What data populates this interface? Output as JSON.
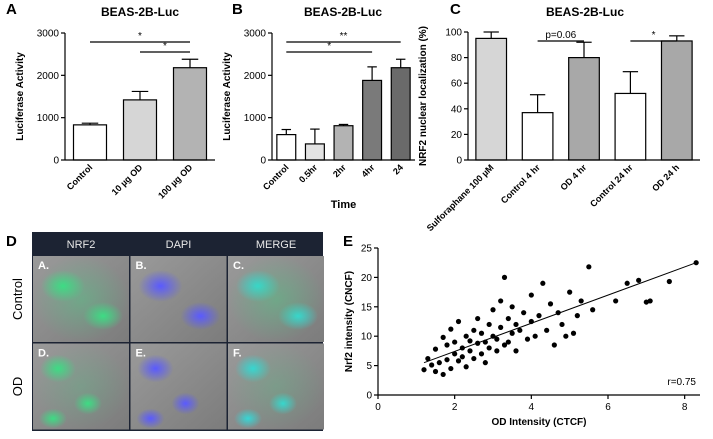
{
  "chart_data": [
    {
      "type": "bar",
      "panel": "A",
      "title": "BEAS-2B-Luc",
      "y_label": "Luciferase Activity",
      "categories": [
        "Control",
        "10 µg OD",
        "100 µg OD"
      ],
      "values": [
        830,
        1420,
        2180
      ],
      "errors": [
        40,
        200,
        200
      ],
      "colors": [
        "#ffffff",
        "#d6d6d6",
        "#b3b3b3"
      ],
      "ylim": [
        0,
        3000
      ],
      "yticks": [
        0,
        1000,
        2000,
        3000
      ],
      "annotations": [
        {
          "label": "*",
          "between": [
            "Control",
            "100 µg OD"
          ]
        },
        {
          "label": "*",
          "between": [
            "10 µg OD",
            "100 µg OD"
          ]
        }
      ]
    },
    {
      "type": "bar",
      "panel": "B",
      "title": "BEAS-2B-Luc",
      "y_label": "Luciferase Activity",
      "x_label": "Time",
      "categories": [
        "Control",
        "0.5hr",
        "2hr",
        "4hr",
        "24"
      ],
      "values": [
        600,
        380,
        810,
        1880,
        2180
      ],
      "errors": [
        120,
        350,
        30,
        320,
        200
      ],
      "colors": [
        "#ffffff",
        "#e3e3e3",
        "#b3b3b3",
        "#7a7a7a",
        "#6a6a6a"
      ],
      "ylim": [
        0,
        3000
      ],
      "yticks": [
        0,
        1000,
        2000,
        3000
      ],
      "annotations": [
        {
          "label": "**",
          "between": [
            "Control",
            "24"
          ]
        },
        {
          "label": "*",
          "between": [
            "Control",
            "4hr"
          ]
        }
      ]
    },
    {
      "type": "bar",
      "panel": "C",
      "title": "BEAS-2B-Luc",
      "y_label": "NRF2 nuclear localization (%)",
      "categories": [
        "Sulforaphane 100 µM",
        "Control 4 hr",
        "OD 4 hr",
        "Control 24 hr",
        "OD 24 h"
      ],
      "values": [
        95,
        37,
        80,
        52,
        93
      ],
      "errors": [
        5,
        14,
        12,
        17,
        4
      ],
      "colors": [
        "#d6d6d6",
        "#ffffff",
        "#a8a8a8",
        "#ffffff",
        "#a8a8a8"
      ],
      "ylim": [
        0,
        100
      ],
      "yticks": [
        0,
        20,
        40,
        60,
        80,
        100
      ],
      "annotations": [
        {
          "label": "p=0.06",
          "between": [
            "Control 4 hr",
            "OD 4 hr"
          ]
        },
        {
          "label": "*",
          "between": [
            "Control 24 hr",
            "OD 24 h"
          ]
        }
      ]
    },
    {
      "type": "scatter",
      "panel": "E",
      "x_label": "OD Intensity  (CTCF)",
      "y_label": "Nrf2 intensity (CNCF)",
      "x": [
        1.2,
        1.3,
        1.4,
        1.5,
        1.5,
        1.6,
        1.7,
        1.7,
        1.8,
        1.8,
        1.9,
        1.9,
        2.0,
        2.0,
        2.1,
        2.1,
        2.2,
        2.2,
        2.3,
        2.3,
        2.4,
        2.4,
        2.5,
        2.5,
        2.6,
        2.6,
        2.7,
        2.7,
        2.8,
        2.8,
        2.9,
        2.9,
        3.0,
        3.0,
        3.1,
        3.1,
        3.2,
        3.2,
        3.3,
        3.3,
        3.4,
        3.4,
        3.5,
        3.5,
        3.6,
        3.6,
        3.7,
        3.8,
        3.9,
        4.0,
        4.0,
        4.1,
        4.2,
        4.3,
        4.4,
        4.5,
        4.6,
        4.7,
        4.8,
        4.9,
        5.0,
        5.1,
        5.2,
        5.3,
        5.5,
        5.6,
        6.2,
        6.5,
        6.8,
        7.0,
        7.1,
        7.6,
        8.3
      ],
      "values": [
        4.3,
        6.2,
        5.1,
        4.0,
        7.8,
        5.5,
        9.8,
        3.5,
        6.0,
        8.5,
        4.5,
        11.2,
        7.0,
        9.0,
        5.8,
        12.5,
        8.0,
        6.5,
        10.0,
        4.8,
        7.5,
        9.2,
        11.0,
        6.2,
        8.8,
        13.0,
        7.0,
        10.5,
        9.0,
        5.5,
        12.0,
        8.0,
        10.0,
        14.5,
        7.5,
        9.5,
        16.0,
        11.5,
        8.5,
        20.0,
        13.0,
        9.0,
        10.5,
        15.0,
        12.0,
        7.5,
        11.0,
        14.0,
        9.5,
        17.0,
        12.5,
        10.0,
        13.5,
        19.0,
        11.0,
        15.5,
        8.5,
        14.0,
        12.0,
        10.0,
        17.5,
        10.5,
        13.5,
        16.0,
        21.8,
        14.5,
        16.0,
        19.0,
        19.5,
        15.8,
        16.0,
        19.3,
        22.5
      ],
      "fit_line": {
        "x": [
          1.2,
          8.3
        ],
        "y": [
          5.5,
          22.5
        ]
      },
      "annotation": "r=0.75",
      "xlim": [
        0,
        8.4
      ],
      "xticks": [
        0,
        2,
        4,
        6,
        8
      ],
      "ylim": [
        0,
        25
      ],
      "yticks": [
        0,
        5,
        10,
        15,
        20,
        25
      ]
    }
  ],
  "image_panel": {
    "panel": "D",
    "columns": [
      "NRF2",
      "DAPI",
      "MERGE"
    ],
    "rows": [
      "Control",
      "OD"
    ],
    "cells": [
      "A.",
      "B.",
      "C.",
      "D.",
      "E.",
      "F."
    ]
  }
}
